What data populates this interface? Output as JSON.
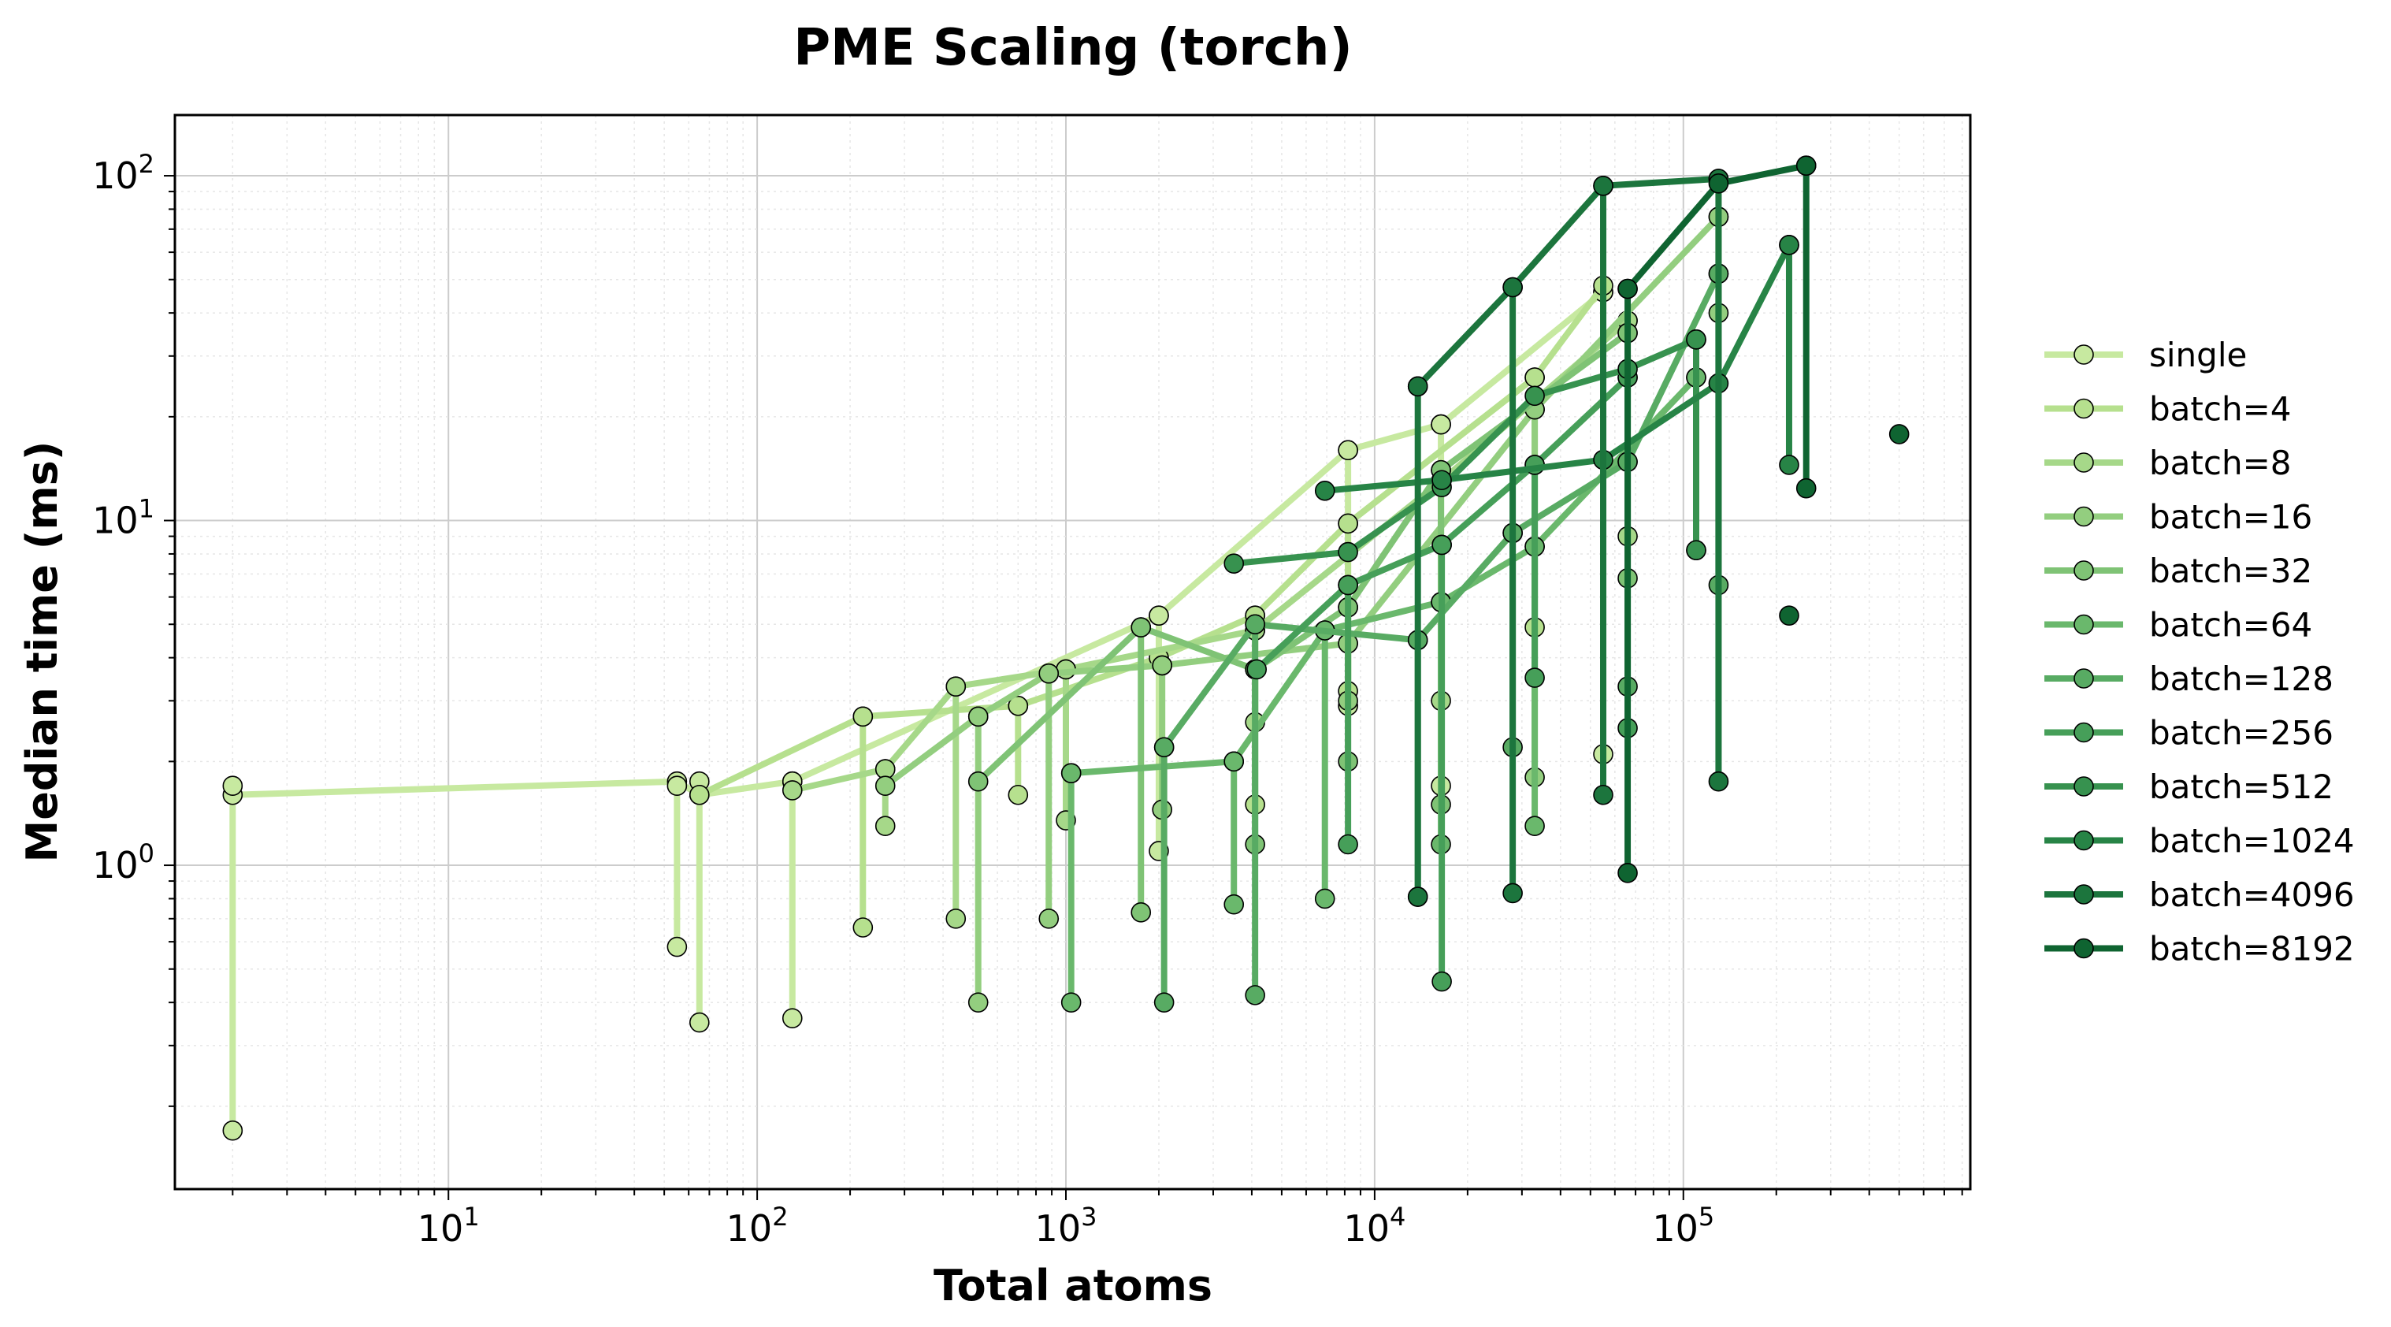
{
  "chart_data": {
    "type": "line",
    "title": "PME Scaling (torch)",
    "xlabel": "Total atoms",
    "ylabel": "Median time (ms)",
    "xscale": "log",
    "yscale": "log",
    "xlim": [
      1.3,
      850000
    ],
    "ylim": [
      0.115,
      150
    ],
    "grid": true,
    "legend_position": "right",
    "x_ticks": [
      {
        "value": 10,
        "base": "10",
        "exp": "1"
      },
      {
        "value": 100,
        "base": "10",
        "exp": "2"
      },
      {
        "value": 1000,
        "base": "10",
        "exp": "3"
      },
      {
        "value": 10000,
        "base": "10",
        "exp": "4"
      },
      {
        "value": 100000,
        "base": "10",
        "exp": "5"
      }
    ],
    "y_ticks": [
      {
        "value": 1,
        "base": "10",
        "exp": "0"
      },
      {
        "value": 10,
        "base": "10",
        "exp": "1"
      },
      {
        "value": 100,
        "base": "10",
        "exp": "2"
      }
    ],
    "series": [
      {
        "name": "single",
        "color": "#c7e9a0",
        "points": [
          [
            2,
            1.6
          ],
          [
            55,
            1.75
          ],
          [
            65,
            1.6
          ],
          [
            130,
            1.75
          ],
          [
            2000,
            5.3
          ],
          [
            8200,
            16
          ],
          [
            16400,
            19
          ],
          [
            55000,
            46
          ]
        ],
        "verticals": [
          [
            2,
            0.17,
            1.7
          ],
          [
            55,
            0.58,
            1.7
          ],
          [
            65,
            0.35,
            1.75
          ],
          [
            130,
            0.36,
            1.75
          ],
          [
            2000,
            1.1,
            5.3
          ],
          [
            8200,
            2.9,
            16
          ],
          [
            16400,
            1.7,
            19
          ],
          [
            55000,
            2.1,
            46
          ]
        ]
      },
      {
        "name": "batch=4",
        "color": "#b6e08e",
        "points": [
          [
            65,
            1.6
          ],
          [
            220,
            2.7
          ],
          [
            700,
            2.9
          ],
          [
            2000,
            4.0
          ],
          [
            4100,
            5.3
          ],
          [
            8200,
            9.8
          ],
          [
            33000,
            26
          ],
          [
            55000,
            48
          ]
        ],
        "verticals": [
          [
            220,
            0.66,
            2.7
          ],
          [
            700,
            1.6,
            2.9
          ],
          [
            4100,
            1.5,
            5.3
          ],
          [
            8200,
            3.2,
            9.8
          ],
          [
            33000,
            4.9,
            26
          ]
        ]
      },
      {
        "name": "batch=8",
        "color": "#a6d889",
        "points": [
          [
            130,
            1.65
          ],
          [
            260,
            1.9
          ],
          [
            440,
            3.3
          ],
          [
            1000,
            3.7
          ],
          [
            4100,
            4.8
          ],
          [
            16400,
            13
          ],
          [
            66000,
            38
          ]
        ],
        "verticals": [
          [
            260,
            1.3,
            1.9
          ],
          [
            440,
            0.7,
            3.3
          ],
          [
            1000,
            1.35,
            3.7
          ],
          [
            4100,
            2.6,
            4.8
          ],
          [
            16400,
            3.0,
            13
          ],
          [
            66000,
            9.0,
            38
          ]
        ]
      },
      {
        "name": "batch=16",
        "color": "#93ce7f",
        "points": [
          [
            260,
            1.7
          ],
          [
            520,
            2.7
          ],
          [
            880,
            3.6
          ],
          [
            2050,
            3.8
          ],
          [
            8200,
            4.4
          ],
          [
            33000,
            21
          ],
          [
            130000,
            76
          ]
        ],
        "verticals": [
          [
            520,
            0.4,
            2.7
          ],
          [
            880,
            0.7,
            3.6
          ],
          [
            2050,
            1.45,
            3.8
          ],
          [
            8200,
            3.0,
            4.4
          ],
          [
            33000,
            1.8,
            21
          ],
          [
            130000,
            40,
            76
          ]
        ]
      },
      {
        "name": "batch=32",
        "color": "#7fc375",
        "points": [
          [
            520,
            1.75
          ],
          [
            1750,
            4.9
          ],
          [
            4100,
            3.7
          ],
          [
            8200,
            5.6
          ],
          [
            16400,
            14
          ],
          [
            66000,
            35
          ]
        ],
        "verticals": [
          [
            1750,
            0.73,
            4.9
          ],
          [
            4100,
            1.15,
            3.7
          ],
          [
            8200,
            2.0,
            5.6
          ],
          [
            16400,
            1.5,
            14
          ],
          [
            66000,
            6.8,
            35
          ]
        ]
      },
      {
        "name": "batch=64",
        "color": "#6ab86c",
        "points": [
          [
            1040,
            1.85
          ],
          [
            3500,
            2.0
          ],
          [
            6900,
            4.8
          ],
          [
            16400,
            5.8
          ],
          [
            33000,
            8.4
          ],
          [
            110000,
            26
          ]
        ],
        "verticals": [
          [
            1040,
            0.4,
            1.85
          ],
          [
            3500,
            0.77,
            2.0
          ],
          [
            6900,
            0.8,
            4.8
          ],
          [
            16400,
            1.15,
            5.8
          ],
          [
            33000,
            1.3,
            8.4
          ],
          [
            110000,
            8.2,
            26
          ]
        ]
      },
      {
        "name": "batch=128",
        "color": "#58ab63",
        "points": [
          [
            2080,
            2.2
          ],
          [
            4100,
            5.0
          ],
          [
            13800,
            4.5
          ],
          [
            28000,
            9.2
          ],
          [
            66000,
            14.8
          ],
          [
            130000,
            52
          ]
        ],
        "verticals": [
          [
            2080,
            0.4,
            2.2
          ],
          [
            4100,
            0.42,
            5.0
          ],
          [
            13800,
            0.81,
            4.5
          ],
          [
            28000,
            2.2,
            9.2
          ],
          [
            66000,
            3.3,
            14.8
          ],
          [
            130000,
            6.5,
            52
          ]
        ]
      },
      {
        "name": "batch=256",
        "color": "#469f59",
        "points": [
          [
            4150,
            3.7
          ],
          [
            8200,
            6.5
          ],
          [
            16500,
            8.5
          ],
          [
            33000,
            14.5
          ],
          [
            66000,
            26
          ]
        ],
        "verticals": [
          [
            8200,
            1.15,
            6.5
          ],
          [
            16500,
            0.46,
            8.5
          ],
          [
            33000,
            3.5,
            14.5
          ],
          [
            66000,
            2.5,
            26
          ]
        ]
      },
      {
        "name": "batch=512",
        "color": "#37924f",
        "points": [
          [
            3500,
            7.5
          ],
          [
            8200,
            8.1
          ],
          [
            16500,
            12.5
          ],
          [
            33000,
            23
          ],
          [
            66000,
            27.5
          ],
          [
            110000,
            33.5
          ]
        ],
        "verticals": [
          [
            110000,
            8.2,
            33.5
          ]
        ]
      },
      {
        "name": "batch=1024",
        "color": "#278446",
        "points": [
          [
            6900,
            12.2
          ],
          [
            16500,
            13.1
          ],
          [
            55000,
            15
          ],
          [
            130000,
            25
          ],
          [
            220000,
            63
          ]
        ],
        "verticals": [
          [
            220000,
            14.5,
            63
          ]
        ]
      },
      {
        "name": "batch=4096",
        "color": "#1c753d",
        "points": [
          [
            13800,
            24.5
          ],
          [
            28000,
            47.5
          ],
          [
            55000,
            93.5
          ],
          [
            130000,
            98
          ]
        ],
        "verticals": [
          [
            13800,
            0.81,
            24.5
          ],
          [
            28000,
            0.83,
            47.5
          ],
          [
            55000,
            1.6,
            93.5
          ],
          [
            130000,
            1.75,
            98
          ]
        ]
      },
      {
        "name": "batch=8192",
        "color": "#0f6431",
        "points": [
          [
            66000,
            47
          ],
          [
            130000,
            95
          ],
          [
            250000,
            107
          ]
        ],
        "verticals": [
          [
            66000,
            0.95,
            47
          ],
          [
            250000,
            12.4,
            107
          ]
        ]
      }
    ],
    "extra_points": [
      {
        "x": 500000,
        "y": 17.8,
        "color": "#0f6431"
      },
      {
        "x": 220000,
        "y": 5.3,
        "color": "#0f6431"
      }
    ]
  }
}
